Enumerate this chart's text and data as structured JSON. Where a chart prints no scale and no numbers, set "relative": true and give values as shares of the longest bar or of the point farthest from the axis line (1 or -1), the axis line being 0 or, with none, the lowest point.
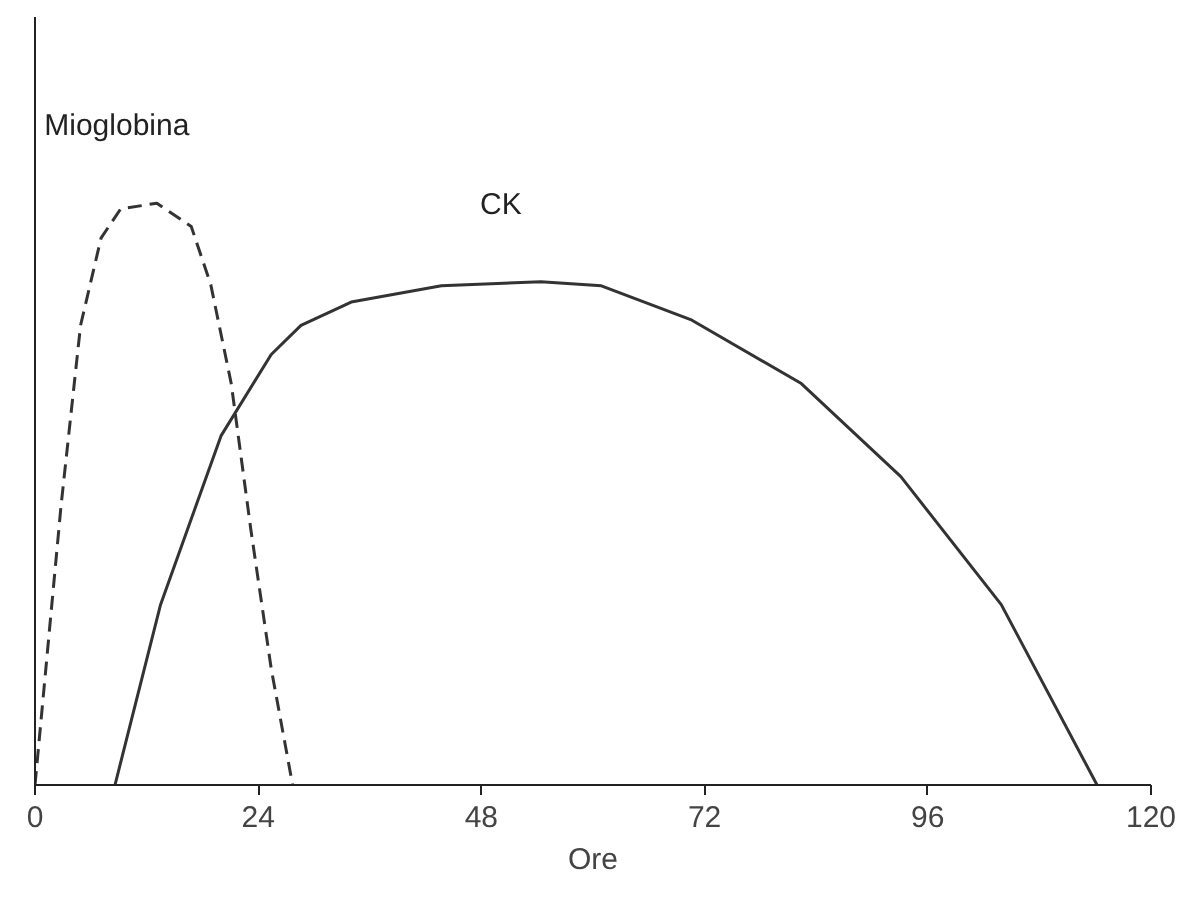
{
  "chart_data": {
    "type": "line",
    "relative": true,
    "xlabel": "Ore",
    "xlim": [
      0,
      120
    ],
    "xticks": [
      0,
      24,
      48,
      72,
      96,
      120
    ],
    "grid": false,
    "legend": false,
    "series": [
      {
        "name": "Mioglobina",
        "color": "#333333",
        "line_style": "dashed",
        "x": [
          0,
          2.8,
          4.9,
          7.1,
          9.2,
          13.1,
          16.8,
          18.9,
          21.1,
          23.2,
          25.4,
          27.7
        ],
        "values": [
          0,
          0.48,
          0.79,
          0.94,
          0.99,
          1.0,
          0.96,
          0.86,
          0.69,
          0.44,
          0.2,
          0
        ]
      },
      {
        "name": "CK",
        "color": "#333333",
        "line_style": "solid",
        "x": [
          8.6,
          13.5,
          20,
          25.4,
          28.6,
          34,
          43.7,
          54.4,
          60.9,
          70.5,
          82.4,
          93.1,
          103.9,
          114.2
        ],
        "values": [
          0,
          0.31,
          0.6,
          0.74,
          0.79,
          0.83,
          0.858,
          0.865,
          0.858,
          0.8,
          0.69,
          0.53,
          0.31,
          0
        ]
      }
    ]
  }
}
